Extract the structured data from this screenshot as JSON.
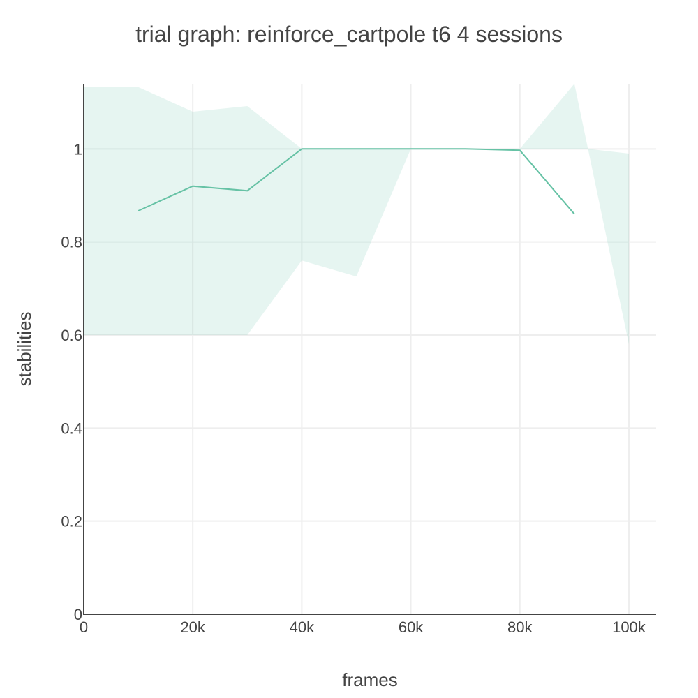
{
  "chart_data": {
    "type": "line",
    "title": "trial graph: reinforce_cartpole t6 4 sessions",
    "xlabel": "frames",
    "ylabel": "stabilities",
    "xlim": [
      0,
      105000
    ],
    "ylim": [
      0,
      1.14
    ],
    "grid": true,
    "legend": "none",
    "x_ticks": [
      0,
      20000,
      40000,
      60000,
      80000,
      100000
    ],
    "x_tick_labels": [
      "0",
      "20k",
      "40k",
      "60k",
      "80k",
      "100k"
    ],
    "y_ticks": [
      0,
      0.2,
      0.4,
      0.6,
      0.8,
      1
    ],
    "y_tick_labels": [
      "0",
      "0.2",
      "0.4",
      "0.6",
      "0.8",
      "1"
    ],
    "series": [
      {
        "color": "#66c2a5",
        "x": [
          10000,
          20000,
          30000,
          40000,
          50000,
          60000,
          70000,
          80000,
          90000
        ],
        "values": [
          0.867,
          0.92,
          0.91,
          1.0,
          1.0,
          1.0,
          1.0,
          0.997,
          0.86
        ]
      }
    ],
    "band": {
      "color": "#66c2a5",
      "opacity": 0.16,
      "x": [
        0,
        10000,
        20000,
        30000,
        40000,
        50000,
        60000,
        70000,
        80000,
        90000,
        92500,
        100000
      ],
      "upper": [
        1.133,
        1.133,
        1.08,
        1.092,
        1.0,
        1.0,
        1.0,
        1.0,
        1.0,
        1.14,
        1.0,
        0.99
      ],
      "lower": [
        0.6,
        0.6,
        0.6,
        0.6,
        0.76,
        0.726,
        1.0,
        1.0,
        1.0,
        1.0,
        1.0,
        0.58
      ]
    }
  }
}
